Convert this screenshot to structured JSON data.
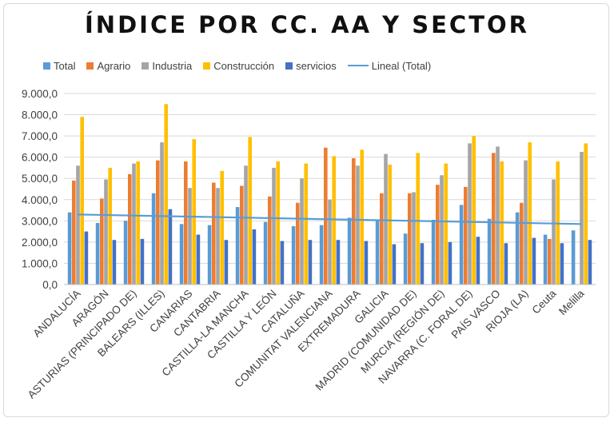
{
  "chart_data": {
    "type": "bar",
    "title": "ÍNDICE POR CC. AA Y SECTOR",
    "xlabel": "",
    "ylabel": "",
    "ylim": [
      0,
      9000
    ],
    "yticks": [
      "0,0",
      "1.000,0",
      "2.000,0",
      "3.000,0",
      "4.000,0",
      "5.000,0",
      "6.000,0",
      "7.000,0",
      "8.000,0",
      "9.000,0"
    ],
    "grid": true,
    "legend_position": "top",
    "categories": [
      "ANDALUCÍA",
      "ARAGÓN",
      "ASTURIAS (PRINCIPADO DE)",
      "BALEARS (ILLES)",
      "CANARIAS",
      "CANTABRIA",
      "CASTILLA-LA MANCHA",
      "CASTILLA Y LEÓN",
      "CATALUÑA",
      "COMUNITAT VALENCIANA",
      "EXTREMADURA",
      "GALICIA",
      "MADRID (COMUNIDAD DE)",
      "MURCIA (REGIÓN DE)",
      "NAVARRA (C. FORAL DE)",
      "PAÍS VASCO",
      "RIOJA (LA)",
      "Ceuta",
      "Melilla"
    ],
    "series": [
      {
        "name": "Total",
        "color": "#5b9bd5",
        "values": [
          3400,
          2900,
          3000,
          4300,
          2850,
          2800,
          3650,
          2950,
          2750,
          2800,
          3150,
          3000,
          2400,
          3050,
          3750,
          3100,
          3400,
          2350,
          2550
        ]
      },
      {
        "name": "Agrario",
        "color": "#ed7d31",
        "values": [
          4900,
          4050,
          5200,
          5850,
          5800,
          4800,
          4650,
          4150,
          3850,
          6450,
          5950,
          4300,
          4300,
          4700,
          4600,
          6200,
          3850,
          2150,
          0
        ]
      },
      {
        "name": "Industria",
        "color": "#a5a5a5",
        "values": [
          5600,
          4950,
          5700,
          6700,
          4550,
          4550,
          5600,
          5500,
          5000,
          4000,
          5600,
          6150,
          4350,
          5150,
          6650,
          6500,
          5850,
          4950,
          6250
        ]
      },
      {
        "name": "Construcción",
        "color": "#ffc000",
        "values": [
          7900,
          5500,
          5800,
          8500,
          6850,
          5350,
          6950,
          5800,
          5700,
          6050,
          6350,
          5650,
          6200,
          5700,
          7000,
          5800,
          6700,
          5800,
          6650
        ]
      },
      {
        "name": "servicios",
        "color": "#4472c4",
        "values": [
          2500,
          2100,
          2150,
          3550,
          2350,
          2100,
          2600,
          2050,
          2100,
          2100,
          2050,
          1900,
          1950,
          2000,
          2250,
          1950,
          2200,
          1950,
          2100
        ]
      }
    ],
    "trendline": {
      "name": "Lineal (Total)",
      "color": "#5b9bd5",
      "start": 3300,
      "end": 2850
    }
  }
}
